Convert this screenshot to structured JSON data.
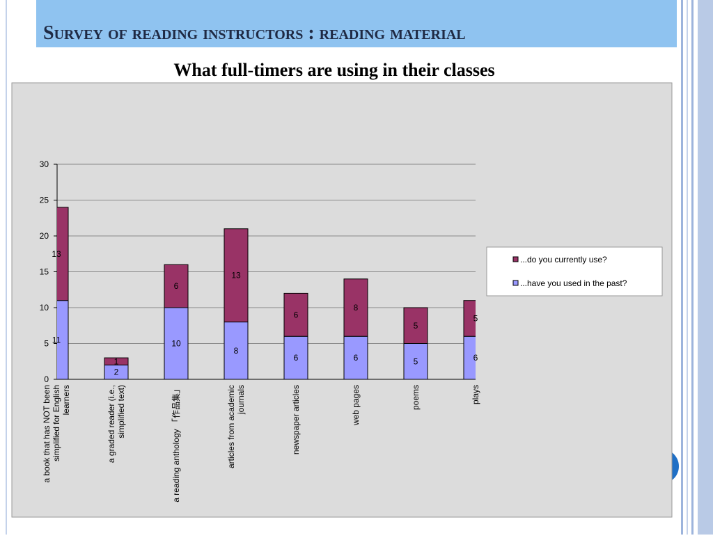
{
  "chart_data": {
    "type": "stacked_bar",
    "title": "Survey of reading instructors : reading material",
    "subtitle": "What full-timers are using in their classes",
    "categories": [
      "a book that has NOT been simplified for English learners",
      "a graded reader (i.e., simplified text)",
      "a reading anthology 「作品集」",
      "articles from academic journals",
      "newspaper articles",
      "web pages",
      "poems",
      "plays"
    ],
    "series": [
      {
        "name": "...have you used in the past?",
        "color": "#9999ff",
        "values": [
          11,
          2,
          10,
          8,
          6,
          6,
          5,
          6
        ]
      },
      {
        "name": "...do you currently use?",
        "color": "#993366",
        "values": [
          13,
          1,
          6,
          13,
          6,
          8,
          5,
          5
        ]
      }
    ],
    "ylim": [
      0,
      30
    ],
    "yticks": [
      0,
      5,
      10,
      15,
      20,
      25,
      30
    ],
    "grid": true,
    "legend": "right"
  }
}
